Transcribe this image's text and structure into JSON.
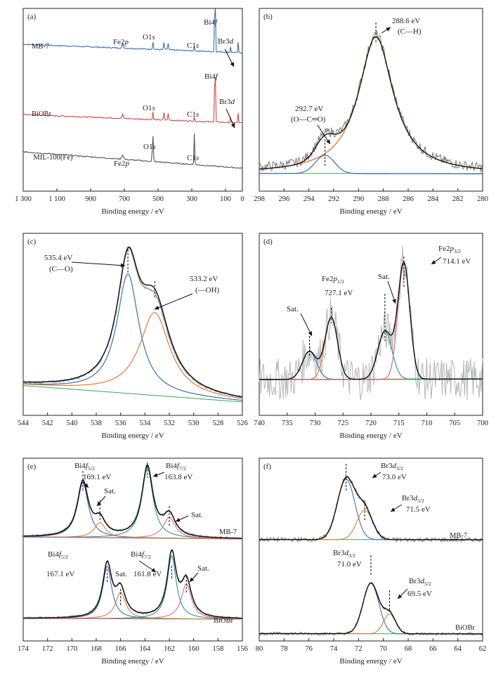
{
  "chart_data": [
    {
      "panel": "(a)",
      "type": "line",
      "xlabel": "Binding energy / eV",
      "xlim": [
        1300,
        0
      ],
      "xticks": [
        1300,
        1100,
        900,
        700,
        500,
        300,
        100,
        0
      ],
      "xtick_labels": [
        "1 300",
        "1 100",
        "900",
        "700",
        "500",
        "300",
        "100",
        "0"
      ],
      "series": [
        {
          "name": "MB-7",
          "color": "#3a6fb5"
        },
        {
          "name": "BiOBr",
          "color": "#d24a48"
        },
        {
          "name": "MIL-100(Fe)",
          "color": "#555555"
        }
      ],
      "peak_labels": [
        "Fe2p",
        "O1s",
        "C1s",
        "Bi4f",
        "Br3d"
      ]
    },
    {
      "panel": "(b)",
      "type": "line",
      "xlabel": "Binding energy / eV",
      "xlim": [
        298,
        280
      ],
      "xticks": [
        298,
        296,
        294,
        292,
        290,
        288,
        286,
        284,
        282,
        280
      ],
      "peaks": [
        {
          "energy": 288.6,
          "label": "288.6 eV",
          "assignment": "(C—H)",
          "color": "#e07b39"
        },
        {
          "energy": 292.7,
          "label": "292.7 eV",
          "assignment": "(O—C═O)",
          "color": "#3a6fb5"
        }
      ]
    },
    {
      "panel": "(c)",
      "type": "line",
      "xlabel": "Binding energy / eV",
      "xlim": [
        544,
        526
      ],
      "xticks": [
        544,
        542,
        540,
        538,
        536,
        534,
        532,
        530,
        528,
        526
      ],
      "peaks": [
        {
          "energy": 535.4,
          "label": "535.4 eV",
          "assignment": "(C—O)",
          "color": "#3a6fb5"
        },
        {
          "energy": 533.2,
          "label": "533.2 eV",
          "assignment": "(—OH)",
          "color": "#e07b39"
        }
      ]
    },
    {
      "panel": "(d)",
      "type": "line",
      "xlabel": "Binding energy / eV",
      "xlim": [
        740,
        700
      ],
      "xticks": [
        740,
        735,
        730,
        725,
        720,
        715,
        710,
        705,
        700
      ],
      "peaks": [
        {
          "energy": 714.1,
          "label": "714.1 eV",
          "assignment": "Fe2p3/2",
          "color": "#e06a8a"
        },
        {
          "energy": 727.1,
          "label": "727.1 eV",
          "assignment": "Fe2p1/2",
          "color": "#e07b39"
        },
        {
          "energy": 717.5,
          "label": "Sat.",
          "assignment": "Sat.",
          "color": "#2a9a8a"
        },
        {
          "energy": 731.0,
          "label": "Sat.",
          "assignment": "Sat.",
          "color": "#3a6fb5"
        }
      ]
    },
    {
      "panel": "(e)",
      "type": "line",
      "xlabel": "Binding energy / eV",
      "xlim": [
        174,
        156
      ],
      "xticks": [
        174,
        172,
        170,
        168,
        166,
        164,
        162,
        160,
        158,
        156
      ],
      "series": [
        {
          "name": "MB-7",
          "peaks": [
            {
              "energy": 169.1,
              "label": "169.1 eV",
              "assignment": "Bi4f5/2"
            },
            {
              "energy": 163.8,
              "label": "163.8 eV",
              "assignment": "Bi4f7/2"
            },
            {
              "energy": 167.7,
              "label": "Sat."
            },
            {
              "energy": 162.0,
              "label": "Sat."
            }
          ]
        },
        {
          "name": "BiOBr",
          "peaks": [
            {
              "energy": 167.1,
              "label": "167.1 eV",
              "assignment": "Bi4f5/2"
            },
            {
              "energy": 161.8,
              "label": "161.8 eV",
              "assignment": "Bi4f7/2"
            },
            {
              "energy": 166.0,
              "label": "Sat."
            },
            {
              "energy": 160.6,
              "label": "Sat."
            }
          ]
        }
      ]
    },
    {
      "panel": "(f)",
      "type": "line",
      "xlabel": "Binding energy / eV",
      "xlim": [
        80,
        62
      ],
      "xticks": [
        80,
        78,
        76,
        74,
        72,
        70,
        68,
        66,
        64,
        62
      ],
      "series": [
        {
          "name": "MB-7",
          "peaks": [
            {
              "energy": 73.0,
              "label": "73.0 eV",
              "assignment": "Br3d3/2"
            },
            {
              "energy": 71.5,
              "label": "71.5 eV",
              "assignment": "Br3d5/2"
            }
          ]
        },
        {
          "name": "BiOBr",
          "peaks": [
            {
              "energy": 71.0,
              "label": "71.0 eV",
              "assignment": "Br3d3/2"
            },
            {
              "energy": 69.5,
              "label": "69.5 eV",
              "assignment": "Br3d5/2"
            }
          ]
        }
      ]
    }
  ]
}
